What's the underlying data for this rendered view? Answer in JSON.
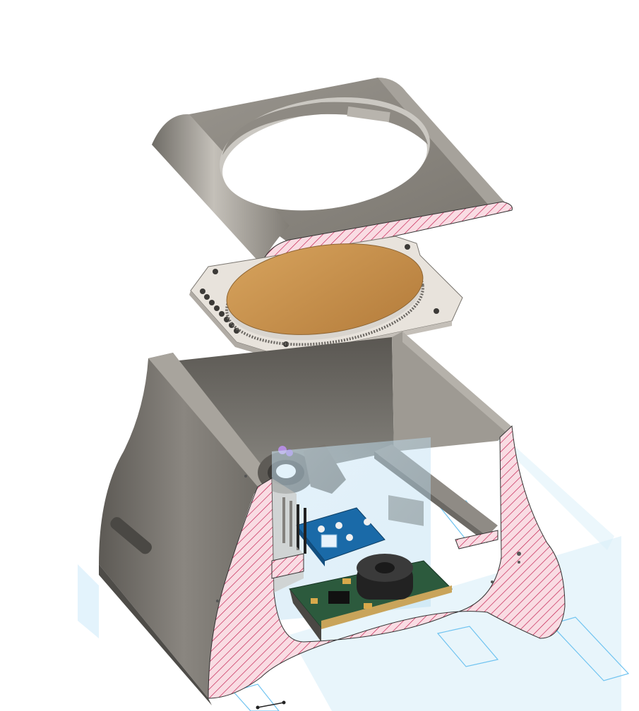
{
  "view": {
    "background": "#ffffff",
    "section_mode": "cross-section",
    "hatch_fill": "#f9dce3",
    "hatch_line": "#c2184b"
  },
  "parts": [
    {
      "name": "top-bezel",
      "color": "#8b8880"
    },
    {
      "name": "disc-pcb-plate",
      "color": "#e8e3dc"
    },
    {
      "name": "gold-disc",
      "color": "#c8914a"
    },
    {
      "name": "enclosure-body",
      "color": "#7d7a73"
    },
    {
      "name": "sensor-board",
      "color": "#1a6aa8"
    },
    {
      "name": "main-pcb",
      "color": "#2c5a3d"
    },
    {
      "name": "inductor",
      "color": "#222222"
    },
    {
      "name": "cable-clip",
      "color": "#6e6b66"
    }
  ],
  "overlays": {
    "sketch_color": "#6fc3f0",
    "sketch_fill": "#dcf0fb"
  }
}
